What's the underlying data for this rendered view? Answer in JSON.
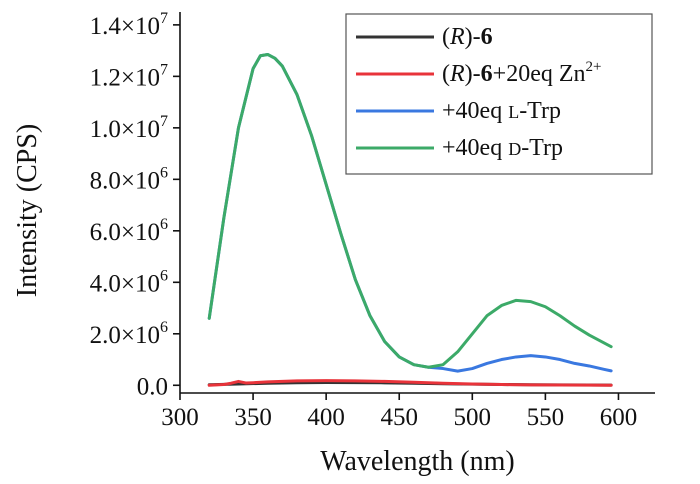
{
  "chart_data": {
    "type": "line",
    "xlabel": "Wavelength (nm)",
    "ylabel": "Intensity (CPS)",
    "xlim": [
      300,
      625
    ],
    "ylim": [
      -300000.0,
      14500000.0
    ],
    "x_ticks": [
      300,
      350,
      400,
      450,
      500,
      550,
      600
    ],
    "y_ticks": [
      0,
      2000000,
      4000000,
      6000000,
      8000000,
      10000000,
      12000000,
      14000000
    ],
    "y_tick_labels": [
      {
        "mantissa": "0.0",
        "exp": ""
      },
      {
        "mantissa": "2.0×10",
        "exp": "6"
      },
      {
        "mantissa": "4.0×10",
        "exp": "6"
      },
      {
        "mantissa": "6.0×10",
        "exp": "6"
      },
      {
        "mantissa": "8.0×10",
        "exp": "6"
      },
      {
        "mantissa": "1.0×10",
        "exp": "7"
      },
      {
        "mantissa": "1.2×10",
        "exp": "7"
      },
      {
        "mantissa": "1.4×10",
        "exp": "7"
      }
    ],
    "grid": false,
    "legend_position": "top-right",
    "series": [
      {
        "label_parts": [
          {
            "t": "(",
            "s": "normal"
          },
          {
            "t": "R",
            "s": "italic"
          },
          {
            "t": ")-",
            "s": "normal"
          },
          {
            "t": "6",
            "s": "bold"
          }
        ],
        "color": "#333333",
        "x": [
          320,
          340,
          360,
          380,
          400,
          420,
          440,
          460,
          480,
          500,
          520,
          540,
          560,
          580,
          595
        ],
        "y": [
          20000,
          50000,
          80000,
          100000,
          110000,
          105000,
          95000,
          80000,
          60000,
          45000,
          30000,
          20000,
          15000,
          10000,
          8000
        ]
      },
      {
        "label_parts": [
          {
            "t": "(",
            "s": "normal"
          },
          {
            "t": "R",
            "s": "italic"
          },
          {
            "t": ")-",
            "s": "normal"
          },
          {
            "t": "6",
            "s": "bold"
          },
          {
            "t": "+20eq Zn",
            "s": "normal"
          },
          {
            "t": "2+",
            "s": "sup"
          }
        ],
        "color": "#e8333a",
        "x": [
          320,
          330,
          335,
          340,
          345,
          350,
          360,
          380,
          400,
          420,
          440,
          460,
          480,
          500,
          520,
          540,
          560,
          580,
          595
        ],
        "y": [
          0,
          30000,
          80000,
          150000,
          90000,
          100000,
          130000,
          170000,
          180000,
          170000,
          150000,
          120000,
          80000,
          50000,
          30000,
          15000,
          10000,
          5000,
          0
        ]
      },
      {
        "label_parts": [
          {
            "t": "+40eq ",
            "s": "normal"
          },
          {
            "t": "L",
            "s": "smallcaps"
          },
          {
            "t": "-Trp",
            "s": "normal"
          }
        ],
        "color": "#3a78e0",
        "x": [
          320,
          330,
          340,
          350,
          355,
          360,
          365,
          370,
          380,
          390,
          400,
          410,
          420,
          430,
          440,
          450,
          460,
          470,
          480,
          490,
          500,
          510,
          520,
          530,
          540,
          550,
          560,
          570,
          580,
          590,
          595
        ],
        "y": [
          2600000,
          6500000,
          10000000,
          12300000,
          12800000,
          12850000,
          12700000,
          12400000,
          11300000,
          9700000,
          7800000,
          5900000,
          4100000,
          2700000,
          1700000,
          1100000,
          800000,
          700000,
          650000,
          550000,
          650000,
          850000,
          1000000,
          1100000,
          1150000,
          1100000,
          1000000,
          850000,
          750000,
          620000,
          560000
        ]
      },
      {
        "label_parts": [
          {
            "t": "+40eq ",
            "s": "normal"
          },
          {
            "t": "D",
            "s": "smallcaps"
          },
          {
            "t": "-Trp",
            "s": "normal"
          }
        ],
        "color": "#3caa68",
        "x": [
          320,
          330,
          340,
          350,
          355,
          360,
          365,
          370,
          380,
          390,
          400,
          410,
          420,
          430,
          440,
          450,
          460,
          470,
          480,
          490,
          500,
          510,
          520,
          530,
          540,
          550,
          560,
          570,
          580,
          590,
          595
        ],
        "y": [
          2600000,
          6500000,
          10000000,
          12300000,
          12800000,
          12850000,
          12700000,
          12400000,
          11300000,
          9700000,
          7800000,
          5900000,
          4100000,
          2700000,
          1700000,
          1100000,
          800000,
          700000,
          800000,
          1300000,
          2000000,
          2700000,
          3100000,
          3300000,
          3250000,
          3050000,
          2700000,
          2300000,
          1950000,
          1650000,
          1500000
        ]
      }
    ]
  }
}
